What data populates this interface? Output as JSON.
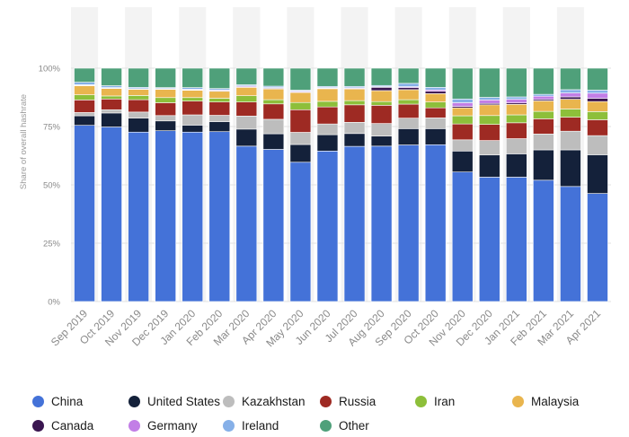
{
  "chart_data": {
    "type": "bar",
    "stacked": true,
    "title": "",
    "xlabel": "",
    "ylabel": "Share of overall hashrate",
    "ylim": [
      0,
      100
    ],
    "yticks": [
      "0%",
      "25%",
      "50%",
      "75%",
      "100%"
    ],
    "grid": true,
    "legend_position": "bottom",
    "categories": [
      "Sep 2019",
      "Oct 2019",
      "Nov 2019",
      "Dec 2019",
      "Jan 2020",
      "Feb 2020",
      "Mar 2020",
      "Apr 2020",
      "May 2020",
      "Jun 2020",
      "Jul 2020",
      "Aug 2020",
      "Sep 2020",
      "Oct 2020",
      "Nov 2020",
      "Dec 2020",
      "Jan 2021",
      "Feb 2021",
      "Mar 2021",
      "Apr 2021"
    ],
    "series": [
      {
        "name": "China",
        "color": "#4472d8",
        "values": [
          75.5,
          74.8,
          72.6,
          73.2,
          72.6,
          72.8,
          66.6,
          65.2,
          59.7,
          64.5,
          66.5,
          66.6,
          67.1,
          67.2,
          55.5,
          53.3,
          53.3,
          52,
          49.3,
          46.3
        ]
      },
      {
        "name": "United States",
        "color": "#14213a",
        "values": [
          4.1,
          6,
          6,
          4.2,
          3,
          4.3,
          7.3,
          6.7,
          7.6,
          7,
          5.5,
          4.3,
          7,
          6.9,
          9,
          9.5,
          10,
          13,
          15.7,
          16.6
        ]
      },
      {
        "name": "Kazakhstan",
        "color": "#bdbdbd",
        "values": [
          1.4,
          1.4,
          2.6,
          2.3,
          4.4,
          2.7,
          5.6,
          6.2,
          5.2,
          4.6,
          4.8,
          5.4,
          4.5,
          4.6,
          4.8,
          6.2,
          6.5,
          6.8,
          8,
          8.2
        ]
      },
      {
        "name": "Russia",
        "color": "#9e2a23",
        "values": [
          5.4,
          4.6,
          5.3,
          5.5,
          5.9,
          5.7,
          6,
          6.6,
          9.7,
          7.3,
          7.5,
          7.8,
          6,
          4.3,
          6.8,
          6.9,
          6.8,
          6.5,
          6,
          6.8
        ]
      },
      {
        "name": "Iran",
        "color": "#8dbf3a",
        "values": [
          2.2,
          1.3,
          1.8,
          2.2,
          1.5,
          1.6,
          2.7,
          1.8,
          3.1,
          2.4,
          1.8,
          1.6,
          1.9,
          2.5,
          3.5,
          3.8,
          3.4,
          3.2,
          3.5,
          3.5
        ]
      },
      {
        "name": "Malaysia",
        "color": "#e9b54e",
        "values": [
          3.9,
          3.2,
          2.6,
          3.5,
          3.1,
          3,
          3.6,
          4.6,
          4.3,
          5.4,
          5,
          4.7,
          4.3,
          3.6,
          3.4,
          4.6,
          4.5,
          4.5,
          4.2,
          4.3
        ]
      },
      {
        "name": "Canada",
        "color": "#3a1650",
        "values": [
          0.2,
          0.2,
          0.1,
          0.2,
          0.2,
          0.3,
          0.2,
          0.3,
          0.2,
          0.2,
          0.2,
          1.4,
          0.9,
          1,
          0.6,
          0.6,
          0.6,
          0.6,
          1,
          1.4
        ]
      },
      {
        "name": "Germany",
        "color": "#c27ee6",
        "values": [
          0.2,
          0.2,
          0.2,
          0.2,
          0.3,
          0.3,
          0.4,
          0.3,
          0.4,
          0.3,
          0.3,
          0.3,
          0.4,
          0.6,
          1.6,
          1.5,
          1.6,
          1.4,
          1.7,
          2.2
        ]
      },
      {
        "name": "Ireland",
        "color": "#86b0e8",
        "values": [
          1.1,
          0.8,
          0.6,
          0.4,
          0.7,
          0.6,
          0.5,
          0.6,
          0.4,
          0.5,
          0.6,
          0.5,
          1.4,
          1.1,
          1.6,
          1.1,
          1,
          0.8,
          1.4,
          1.3
        ]
      },
      {
        "name": "Other",
        "color": "#4fa07a",
        "values": [
          6,
          7.5,
          8.2,
          8.3,
          8.3,
          8.7,
          7.1,
          7.7,
          9.4,
          7.8,
          7.8,
          7.4,
          6.5,
          8.2,
          13.2,
          12.5,
          12.3,
          11.2,
          9.2,
          9.4
        ]
      }
    ]
  }
}
